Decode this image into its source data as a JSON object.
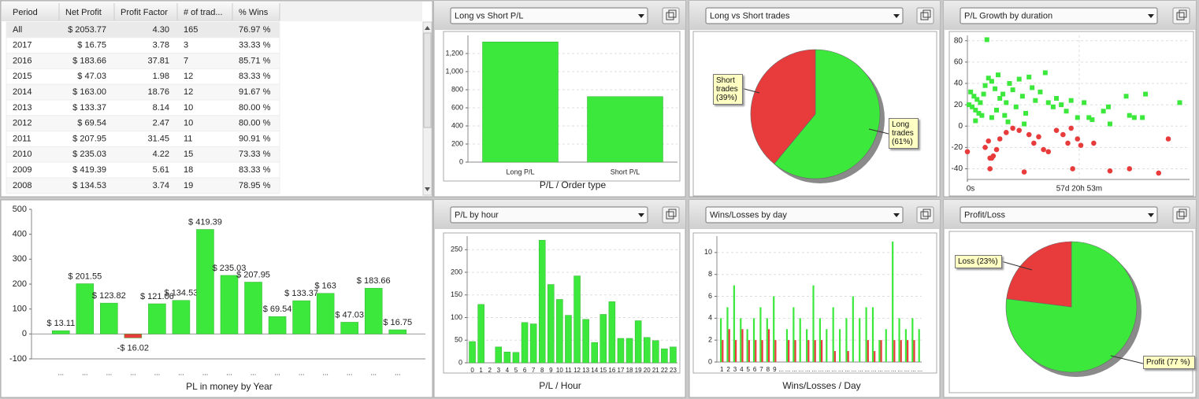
{
  "table": {
    "columns": [
      "Period",
      "Net Profit",
      "Profit Factor",
      "# of trad...",
      "% Wins"
    ],
    "rows": [
      [
        "All",
        "$ 2053.77",
        "4.30",
        "165",
        "76.97 %"
      ],
      [
        "2017",
        "$ 16.75",
        "3.78",
        "3",
        "33.33 %"
      ],
      [
        "2016",
        "$ 183.66",
        "37.81",
        "7",
        "85.71 %"
      ],
      [
        "2015",
        "$ 47.03",
        "1.98",
        "12",
        "83.33 %"
      ],
      [
        "2014",
        "$ 163.00",
        "18.76",
        "12",
        "91.67 %"
      ],
      [
        "2013",
        "$ 133.37",
        "8.14",
        "10",
        "80.00 %"
      ],
      [
        "2012",
        "$ 69.54",
        "2.47",
        "10",
        "80.00 %"
      ],
      [
        "2011",
        "$ 207.95",
        "31.45",
        "11",
        "90.91 %"
      ],
      [
        "2010",
        "$ 235.03",
        "4.22",
        "15",
        "73.33 %"
      ],
      [
        "2009",
        "$ 419.39",
        "5.61",
        "18",
        "83.33 %"
      ],
      [
        "2008",
        "$ 134.53",
        "3.74",
        "19",
        "78.95 %"
      ]
    ]
  },
  "chart_data": [
    {
      "type": "bar",
      "selector": "Long vs Short P/L",
      "xlabel": "P/L / Order type",
      "categories": [
        "Long P/L",
        "Short P/L"
      ],
      "values": [
        1328,
        724
      ],
      "color": "#3de83d",
      "ylim": [
        0,
        1400
      ],
      "yticks": [
        0,
        200,
        400,
        600,
        800,
        {
          "value": 1000,
          "label": "1,000"
        },
        {
          "value": 1200,
          "label": "1,200"
        }
      ],
      "grid": true
    },
    {
      "type": "pie",
      "selector": "Long vs Short trades",
      "values": [
        61,
        39
      ],
      "value_labels": [
        "Long trades (61%)",
        "Short trades (39%)"
      ],
      "colors": [
        "#3de83d",
        "#e83b3b"
      ]
    },
    {
      "type": "scatter",
      "selector": "P/L Growth by duration",
      "series": [
        {
          "color": "#3de83d",
          "x": [
            10.1,
            1.7,
            3.4,
            5,
            6.7,
            8.4,
            2.5,
            4.2,
            5.9,
            7.5,
            0.8,
            9.2,
            10.9,
            12.6,
            14.3,
            15.9,
            16.8,
            18.4,
            20.1,
            21.8,
            23.5,
            25.2,
            26.8,
            28.5,
            30.2,
            31.9,
            33.5,
            35.2,
            37.7,
            40.3,
            41.9,
            44.4,
            46.1,
            48.6,
            51.2,
            53.7,
            57,
            60.4,
            62.9,
            64.6,
            70.4,
            73,
            73.8,
            82.2,
            83.9,
            86.4,
            90.6,
            92.2,
            109.9,
            4.2,
            12.6,
            21,
            29.4,
            15.1,
            19.3
          ],
          "values": [
            81,
            32,
            28,
            25,
            22,
            30,
            18,
            15,
            12,
            10,
            20,
            38,
            45,
            42,
            35,
            48,
            26,
            30,
            22,
            40,
            34,
            18,
            44,
            28,
            12,
            46,
            36,
            24,
            32,
            50,
            22,
            18,
            26,
            20,
            14,
            24,
            8,
            22,
            8,
            6,
            14,
            18,
            2,
            28,
            10,
            8,
            8,
            30,
            22,
            5,
            8,
            4,
            2,
            15,
            10
          ]
        },
        {
          "color": "#e83b3b",
          "x": [
            0,
            9.2,
            11.7,
            13.4,
            15.1,
            10.9,
            16.8,
            20.1,
            23.5,
            26.8,
            29.4,
            31.9,
            34.4,
            36.9,
            39.4,
            41.9,
            46.1,
            49.5,
            52,
            53.7,
            54.5,
            57,
            58.7,
            65.4,
            73.8,
            83.9,
            99,
            104,
            11.7,
            12.6
          ],
          "values": [
            -24,
            -20,
            -30,
            -28,
            -22,
            -14,
            -12,
            -6,
            -2,
            -4,
            -43,
            -8,
            -16,
            -10,
            -22,
            -24,
            -4,
            -8,
            -16,
            -2,
            -40,
            -12,
            -18,
            -16,
            -42,
            -40,
            -44,
            -12,
            -40,
            -30
          ]
        }
      ],
      "xlim": [
        0,
        115
      ],
      "xticks": [
        {
          "value": 0,
          "label": "0s"
        },
        {
          "value": 57.87,
          "label": "57d 20h 53m"
        }
      ],
      "ylim": [
        -50,
        85
      ],
      "yticks": [
        -40,
        -20,
        0,
        20,
        40,
        60,
        80
      ],
      "grid": true
    },
    {
      "type": "bar",
      "xlabel": "PL in money by Year",
      "categories": [
        "...",
        "...",
        "...",
        "...",
        "...",
        "...",
        "...",
        "...",
        "...",
        "...",
        "...",
        "...",
        "...",
        "...",
        "..."
      ],
      "values": [
        13.11,
        201.55,
        123.82,
        -16.02,
        121.06,
        134.53,
        419.39,
        235.03,
        207.95,
        69.54,
        133.37,
        163,
        47.03,
        183.66,
        16.75
      ],
      "value_labels": [
        "$ 13.11",
        "$ 201.55",
        "$ 123.82",
        "-$ 16.02",
        "$ 121.06",
        "$ 134.53",
        "$ 419.39",
        "$ 235.03",
        "$ 207.95",
        "$ 69.54",
        "$ 133.37",
        "$ 163",
        "$ 47.03",
        "$ 183.66",
        "$ 16.75"
      ],
      "colors": [
        "#3de83d",
        "#3de83d",
        "#3de83d",
        "#e83b3b",
        "#3de83d",
        "#3de83d",
        "#3de83d",
        "#3de83d",
        "#3de83d",
        "#3de83d",
        "#3de83d",
        "#3de83d",
        "#3de83d",
        "#3de83d",
        "#3de83d"
      ],
      "ylim": [
        -100,
        500
      ],
      "yticks": [
        -100,
        0,
        100,
        200,
        300,
        400,
        500
      ],
      "grid": false
    },
    {
      "type": "bar",
      "selector": "P/L by hour",
      "xlabel": "P/L / Hour",
      "categories": [
        "0",
        "1",
        "2",
        "3",
        "4",
        "5",
        "6",
        "7",
        "8",
        "9",
        "10",
        "11",
        "12",
        "13",
        "14",
        "15",
        "16",
        "17",
        "18",
        "19",
        "20",
        "21",
        "22",
        "23"
      ],
      "values": [
        47,
        129,
        0,
        35,
        24,
        23,
        89,
        86,
        271,
        173,
        140,
        105,
        192,
        96,
        45,
        107,
        135,
        54,
        54,
        93,
        56,
        49,
        31,
        35
      ],
      "color": "#3de83d",
      "ylim": [
        0,
        280
      ],
      "yticks": [
        0,
        50,
        100,
        150,
        200,
        250
      ],
      "grid": true
    },
    {
      "type": "bar",
      "selector": "Wins/Losses by day",
      "xlabel": "Wins/Losses / Day",
      "categories": [
        "1",
        "2",
        "3",
        "4",
        "5",
        "6",
        "7",
        "8",
        "9",
        "...",
        "...",
        "...",
        "...",
        "...",
        "...",
        "...",
        "...",
        "...",
        "...",
        "...",
        "...",
        "...",
        "...",
        "...",
        "...",
        "...",
        "...",
        "...",
        "...",
        "...",
        "..."
      ],
      "series": [
        {
          "color": "#3de83d",
          "values": [
            4,
            5,
            7,
            4,
            3,
            4,
            5,
            4,
            6,
            0,
            3,
            5,
            4,
            3,
            7,
            4,
            3,
            5,
            3,
            4,
            6,
            4,
            5,
            5,
            2,
            3,
            11,
            4,
            3,
            4,
            3
          ]
        },
        {
          "color": "#e83b3b",
          "values": [
            2,
            3,
            2,
            3,
            2,
            2,
            2,
            3,
            2,
            0,
            2,
            2,
            0,
            2,
            2,
            2,
            0,
            1,
            0,
            1,
            0,
            0,
            2,
            1,
            2,
            0,
            2,
            2,
            2,
            2,
            0
          ]
        }
      ],
      "ylim": [
        0,
        11.5
      ],
      "yticks": [
        0,
        2,
        4,
        6,
        8,
        10
      ],
      "grid": true
    },
    {
      "type": "pie",
      "selector": "Profit/Loss",
      "values": [
        77,
        23
      ],
      "value_labels": [
        "Profit (77 %)",
        "Loss (23%)"
      ],
      "colors": [
        "#3de83d",
        "#e83b3b"
      ]
    }
  ]
}
